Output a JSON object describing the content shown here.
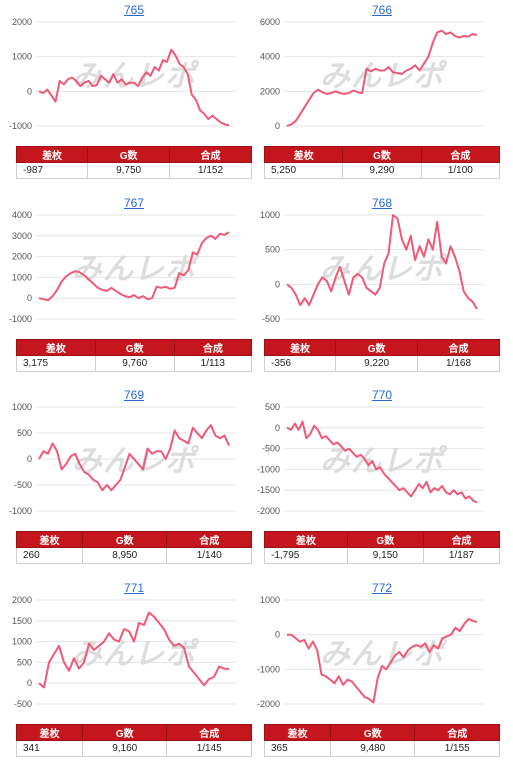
{
  "headers": [
    "差枚",
    "G数",
    "合成"
  ],
  "watermark": "みんレポ",
  "colors": {
    "line": "#ee5a78",
    "header_bg": "#c4161c",
    "title_link": "#2a6bd1"
  },
  "chart_data": [
    {
      "type": "line",
      "title": "765",
      "ylim": [
        -1000,
        2000
      ],
      "yticks": [
        2000,
        1000,
        0,
        -1000
      ],
      "grid": true,
      "values": [
        0,
        -50,
        50,
        -120,
        -300,
        300,
        200,
        350,
        400,
        300,
        150,
        250,
        300,
        150,
        180,
        450,
        350,
        250,
        500,
        250,
        350,
        200,
        250,
        250,
        150,
        400,
        550,
        450,
        700,
        600,
        900,
        850,
        1200,
        1050,
        800,
        700,
        500,
        -100,
        -250,
        -550,
        -650,
        -800,
        -700,
        -800,
        -900,
        -950,
        -987
      ],
      "stats": {
        "diff": "-987",
        "games": "9,750",
        "ratio": "1/152"
      }
    },
    {
      "type": "line",
      "title": "766",
      "ylim": [
        0,
        6000
      ],
      "yticks": [
        6000,
        4000,
        2000,
        0
      ],
      "grid": true,
      "values": [
        0,
        100,
        300,
        700,
        1100,
        1500,
        1900,
        2100,
        1950,
        1850,
        1900,
        2000,
        1900,
        1850,
        1900,
        2050,
        1950,
        1900,
        3300,
        3150,
        3300,
        3200,
        3200,
        3400,
        3100,
        3050,
        3000,
        3200,
        3300,
        3500,
        3200,
        3600,
        4000,
        4800,
        5400,
        5500,
        5300,
        5400,
        5200,
        5100,
        5200,
        5150,
        5300,
        5250
      ],
      "stats": {
        "diff": "5,250",
        "games": "9,290",
        "ratio": "1/100"
      }
    },
    {
      "type": "line",
      "title": "767",
      "ylim": [
        -1000,
        4000
      ],
      "yticks": [
        4000,
        3000,
        2000,
        1000,
        0,
        -1000
      ],
      "grid": true,
      "values": [
        0,
        -50,
        -100,
        100,
        400,
        800,
        1050,
        1200,
        1300,
        1250,
        1100,
        900,
        700,
        500,
        400,
        350,
        500,
        350,
        200,
        100,
        50,
        150,
        0,
        100,
        -50,
        0,
        550,
        500,
        550,
        450,
        500,
        1200,
        1100,
        1350,
        2200,
        2100,
        2650,
        2900,
        3000,
        2850,
        3100,
        3050,
        3175
      ],
      "stats": {
        "diff": "3,175",
        "games": "9,760",
        "ratio": "1/113"
      }
    },
    {
      "type": "line",
      "title": "768",
      "ylim": [
        -500,
        1000
      ],
      "yticks": [
        1000,
        500,
        0,
        -500
      ],
      "grid": true,
      "values": [
        0,
        -50,
        -150,
        -300,
        -200,
        -300,
        -150,
        0,
        100,
        50,
        -100,
        100,
        250,
        50,
        -150,
        100,
        150,
        100,
        -50,
        -100,
        -150,
        -50,
        300,
        450,
        1000,
        950,
        650,
        500,
        700,
        350,
        550,
        400,
        650,
        500,
        900,
        400,
        300,
        550,
        400,
        200,
        -100,
        -200,
        -250,
        -356
      ],
      "stats": {
        "diff": "-356",
        "games": "9,220",
        "ratio": "1/168"
      }
    },
    {
      "type": "line",
      "title": "769",
      "ylim": [
        -1000,
        1000
      ],
      "yticks": [
        1000,
        500,
        0,
        -500,
        -1000
      ],
      "grid": true,
      "values": [
        0,
        150,
        100,
        300,
        150,
        -200,
        -100,
        50,
        100,
        -100,
        -250,
        -300,
        -400,
        -450,
        -600,
        -500,
        -600,
        -500,
        -400,
        -150,
        100,
        0,
        -100,
        -200,
        200,
        100,
        150,
        150,
        0,
        200,
        550,
        400,
        350,
        300,
        600,
        500,
        400,
        550,
        650,
        450,
        400,
        450,
        260
      ],
      "stats": {
        "diff": "260",
        "games": "8,950",
        "ratio": "1/140"
      }
    },
    {
      "type": "line",
      "title": "770",
      "ylim": [
        -2000,
        500
      ],
      "yticks": [
        500,
        0,
        -500,
        -1000,
        -1500,
        -2000
      ],
      "grid": true,
      "values": [
        0,
        -50,
        100,
        -50,
        150,
        -250,
        -150,
        50,
        -50,
        -250,
        -200,
        -300,
        -400,
        -350,
        -450,
        -550,
        -500,
        -600,
        -700,
        -650,
        -750,
        -900,
        -800,
        -1000,
        -950,
        -1100,
        -1200,
        -1300,
        -1400,
        -1500,
        -1450,
        -1550,
        -1650,
        -1500,
        -1350,
        -1450,
        -1300,
        -1550,
        -1450,
        -1500,
        -1400,
        -1550,
        -1600,
        -1500,
        -1600,
        -1550,
        -1700,
        -1650,
        -1750,
        -1795
      ],
      "stats": {
        "diff": "-1,795",
        "games": "9,150",
        "ratio": "1/187"
      }
    },
    {
      "type": "line",
      "title": "771",
      "ylim": [
        -500,
        2000
      ],
      "yticks": [
        2000,
        1500,
        1000,
        500,
        0,
        -500
      ],
      "grid": true,
      "values": [
        0,
        -100,
        500,
        700,
        900,
        500,
        300,
        600,
        350,
        500,
        950,
        800,
        900,
        1000,
        1200,
        1050,
        1000,
        1300,
        1250,
        1000,
        1450,
        1400,
        1700,
        1600,
        1450,
        1300,
        1050,
        900,
        950,
        850,
        400,
        250,
        100,
        -50,
        100,
        150,
        400,
        350,
        341
      ],
      "stats": {
        "diff": "341",
        "games": "9,160",
        "ratio": "1/145"
      }
    },
    {
      "type": "line",
      "title": "772",
      "ylim": [
        -2000,
        1000
      ],
      "yticks": [
        1000,
        0,
        -1000,
        -2000
      ],
      "grid": true,
      "values": [
        0,
        0,
        -100,
        -200,
        -150,
        -400,
        -200,
        -450,
        -1150,
        -1200,
        -1300,
        -1400,
        -1200,
        -1450,
        -1300,
        -1350,
        -1500,
        -1650,
        -1800,
        -1850,
        -1950,
        -1250,
        -900,
        -1000,
        -800,
        -600,
        -500,
        -650,
        -450,
        -350,
        -300,
        -350,
        -250,
        -500,
        -300,
        -400,
        -100,
        -50,
        0,
        200,
        100,
        300,
        450,
        400,
        365
      ],
      "stats": {
        "diff": "365",
        "games": "9,480",
        "ratio": "1/155"
      }
    }
  ]
}
